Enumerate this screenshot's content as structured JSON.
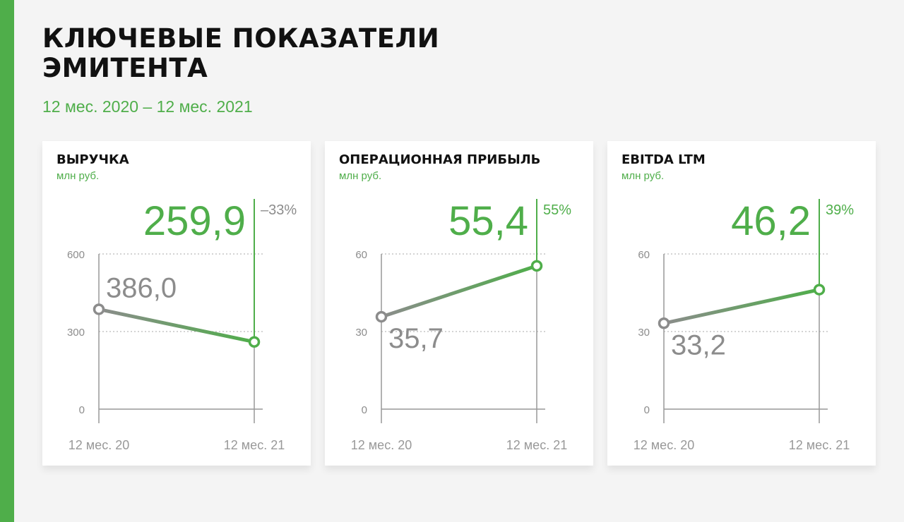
{
  "header": {
    "title_line1": "КЛЮЧЕВЫЕ ПОКАЗАТЕЛИ",
    "title_line2": "ЭМИТЕНТА",
    "period": "12 мес. 2020 – 12 мес. 2021"
  },
  "colors": {
    "accent": "#4fae4a",
    "muted": "#8c8c8c",
    "axis": "#999999"
  },
  "chart_data": [
    {
      "type": "line",
      "title": "ВЫРУЧКА",
      "unit": "млн руб.",
      "categories": [
        "12 мес. 20",
        "12 мес. 21"
      ],
      "values": [
        386.0,
        259.9
      ],
      "value_labels": [
        "386,0",
        "259,9"
      ],
      "change_label": "–33%",
      "change_positive": false,
      "ylim": [
        0,
        600
      ],
      "yticks": [
        0,
        300,
        600
      ],
      "ytick_labels": [
        "0",
        "300",
        "600"
      ],
      "start_label_position": "above"
    },
    {
      "type": "line",
      "title": "ОПЕРАЦИОННАЯ ПРИБЫЛЬ",
      "unit": "млн руб.",
      "categories": [
        "12 мес. 20",
        "12 мес. 21"
      ],
      "values": [
        35.7,
        55.4
      ],
      "value_labels": [
        "35,7",
        "55,4"
      ],
      "change_label": "55%",
      "change_positive": true,
      "ylim": [
        0,
        60
      ],
      "yticks": [
        0,
        30,
        60
      ],
      "ytick_labels": [
        "0",
        "30",
        "60"
      ],
      "start_label_position": "below"
    },
    {
      "type": "line",
      "title": "EBITDA LTM",
      "unit": "млн руб.",
      "categories": [
        "12 мес. 20",
        "12 мес. 21"
      ],
      "values": [
        33.2,
        46.2
      ],
      "value_labels": [
        "33,2",
        "46,2"
      ],
      "change_label": "39%",
      "change_positive": true,
      "ylim": [
        0,
        60
      ],
      "yticks": [
        0,
        30,
        60
      ],
      "ytick_labels": [
        "0",
        "30",
        "60"
      ],
      "start_label_position": "below"
    }
  ]
}
